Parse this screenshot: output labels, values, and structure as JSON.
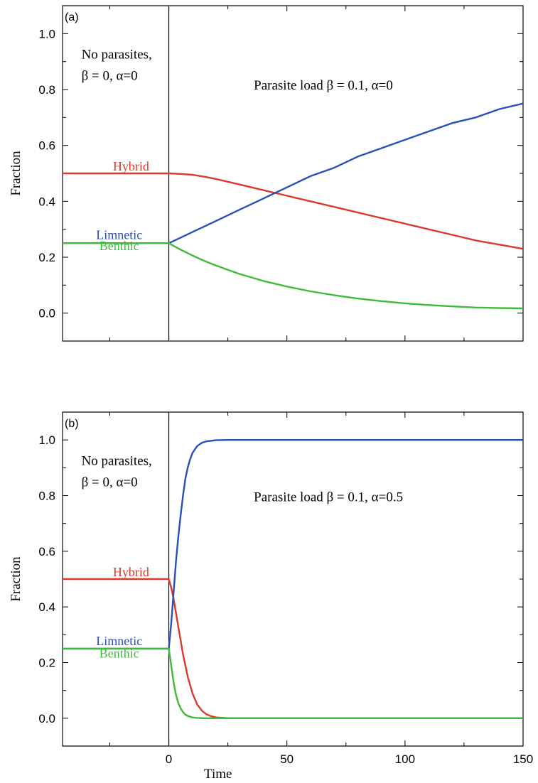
{
  "chart_data": [
    {
      "type": "line",
      "panel_label": "(a)",
      "xlabel": "",
      "ylabel": "Fraction",
      "xlim": [
        -45,
        150
      ],
      "ylim": [
        -0.1,
        1.1
      ],
      "yticks": [
        "0.0",
        "0.2",
        "0.4",
        "0.6",
        "0.8",
        "1.0"
      ],
      "ytick_values": [
        0.0,
        0.2,
        0.4,
        0.6,
        0.8,
        1.0
      ],
      "xticks": [],
      "xtick_values": [],
      "divider_x": 0,
      "annotations": [
        {
          "lines": [
            "No parasites,",
            "β = 0, α=0"
          ],
          "x": -37,
          "y": 0.91
        },
        {
          "lines": [
            "Parasite load  β = 0.1, α=0"
          ],
          "x": 36,
          "y": 0.8
        }
      ],
      "series": [
        {
          "name": "Hybrid",
          "color": "#d93a2b",
          "label_pos": {
            "x": -16,
            "y": 0.51
          },
          "points": [
            [
              -45,
              0.5
            ],
            [
              0,
              0.5
            ],
            [
              5,
              0.498
            ],
            [
              10,
              0.495
            ],
            [
              15,
              0.488
            ],
            [
              20,
              0.48
            ],
            [
              25,
              0.47
            ],
            [
              30,
              0.46
            ],
            [
              35,
              0.45
            ],
            [
              40,
              0.44
            ],
            [
              45,
              0.43
            ],
            [
              50,
              0.42
            ],
            [
              55,
              0.41
            ],
            [
              60,
              0.4
            ],
            [
              70,
              0.38
            ],
            [
              80,
              0.36
            ],
            [
              90,
              0.34
            ],
            [
              100,
              0.32
            ],
            [
              110,
              0.3
            ],
            [
              120,
              0.28
            ],
            [
              130,
              0.26
            ],
            [
              140,
              0.245
            ],
            [
              150,
              0.23
            ]
          ]
        },
        {
          "name": "Limnetic",
          "color": "#2a4fb8",
          "label_pos": {
            "x": -21,
            "y": 0.265
          },
          "points": [
            [
              -45,
              0.25
            ],
            [
              0,
              0.25
            ],
            [
              10,
              0.29
            ],
            [
              20,
              0.33
            ],
            [
              30,
              0.37
            ],
            [
              40,
              0.41
            ],
            [
              50,
              0.45
            ],
            [
              60,
              0.49
            ],
            [
              70,
              0.52
            ],
            [
              80,
              0.56
            ],
            [
              90,
              0.59
            ],
            [
              100,
              0.62
            ],
            [
              110,
              0.65
            ],
            [
              120,
              0.68
            ],
            [
              130,
              0.7
            ],
            [
              140,
              0.73
            ],
            [
              150,
              0.75
            ]
          ]
        },
        {
          "name": "Benthic",
          "color": "#3dbb3a",
          "label_pos": {
            "x": -21,
            "y": 0.225
          },
          "points": [
            [
              -45,
              0.25
            ],
            [
              0,
              0.25
            ],
            [
              5,
              0.227
            ],
            [
              10,
              0.206
            ],
            [
              15,
              0.187
            ],
            [
              20,
              0.17
            ],
            [
              25,
              0.155
            ],
            [
              30,
              0.14
            ],
            [
              40,
              0.115
            ],
            [
              50,
              0.095
            ],
            [
              60,
              0.078
            ],
            [
              70,
              0.064
            ],
            [
              80,
              0.052
            ],
            [
              90,
              0.043
            ],
            [
              100,
              0.035
            ],
            [
              110,
              0.029
            ],
            [
              120,
              0.024
            ],
            [
              130,
              0.02
            ],
            [
              140,
              0.018
            ],
            [
              150,
              0.017
            ]
          ]
        }
      ]
    },
    {
      "type": "line",
      "panel_label": "(b)",
      "xlabel": "Time",
      "ylabel": "Fraction",
      "xlim": [
        -45,
        150
      ],
      "ylim": [
        -0.1,
        1.1
      ],
      "yticks": [
        "0.0",
        "0.2",
        "0.4",
        "0.6",
        "0.8",
        "1.0"
      ],
      "ytick_values": [
        0.0,
        0.2,
        0.4,
        0.6,
        0.8,
        1.0
      ],
      "xticks": [
        "0",
        "50",
        "100",
        "150"
      ],
      "xtick_values": [
        0,
        50,
        100,
        150
      ],
      "divider_x": 0,
      "annotations": [
        {
          "lines": [
            "No parasites,",
            "β = 0, α=0"
          ],
          "x": -37,
          "y": 0.91
        },
        {
          "lines": [
            "Parasite load  β = 0.1, α=0.5"
          ],
          "x": 36,
          "y": 0.78
        }
      ],
      "series": [
        {
          "name": "Hybrid",
          "color": "#d93a2b",
          "label_pos": {
            "x": -16,
            "y": 0.51
          },
          "points": [
            [
              -45,
              0.5
            ],
            [
              0,
              0.5
            ],
            [
              1,
              0.47
            ],
            [
              2,
              0.43
            ],
            [
              3,
              0.38
            ],
            [
              4,
              0.33
            ],
            [
              5,
              0.28
            ],
            [
              6,
              0.23
            ],
            [
              7,
              0.19
            ],
            [
              8,
              0.15
            ],
            [
              9,
              0.12
            ],
            [
              10,
              0.09
            ],
            [
              12,
              0.05
            ],
            [
              14,
              0.027
            ],
            [
              16,
              0.014
            ],
            [
              18,
              0.007
            ],
            [
              20,
              0.003
            ],
            [
              25,
              0.0
            ],
            [
              150,
              0.0
            ]
          ]
        },
        {
          "name": "Limnetic",
          "color": "#2a4fb8",
          "label_pos": {
            "x": -21,
            "y": 0.262
          },
          "points": [
            [
              -45,
              0.25
            ],
            [
              0,
              0.25
            ],
            [
              1,
              0.34
            ],
            [
              2,
              0.45
            ],
            [
              3,
              0.56
            ],
            [
              4,
              0.65
            ],
            [
              5,
              0.73
            ],
            [
              6,
              0.8
            ],
            [
              7,
              0.86
            ],
            [
              8,
              0.9
            ],
            [
              9,
              0.93
            ],
            [
              10,
              0.953
            ],
            [
              12,
              0.978
            ],
            [
              14,
              0.99
            ],
            [
              16,
              0.995
            ],
            [
              20,
              0.999
            ],
            [
              25,
              1.0
            ],
            [
              150,
              1.0
            ]
          ]
        },
        {
          "name": "Benthic",
          "color": "#3dbb3a",
          "label_pos": {
            "x": -21,
            "y": 0.218
          },
          "points": [
            [
              -45,
              0.25
            ],
            [
              0,
              0.25
            ],
            [
              1,
              0.19
            ],
            [
              2,
              0.13
            ],
            [
              3,
              0.085
            ],
            [
              4,
              0.055
            ],
            [
              5,
              0.035
            ],
            [
              6,
              0.022
            ],
            [
              7,
              0.013
            ],
            [
              8,
              0.008
            ],
            [
              10,
              0.003
            ],
            [
              12,
              0.001
            ],
            [
              15,
              0.0
            ],
            [
              150,
              0.0
            ]
          ]
        }
      ]
    }
  ]
}
